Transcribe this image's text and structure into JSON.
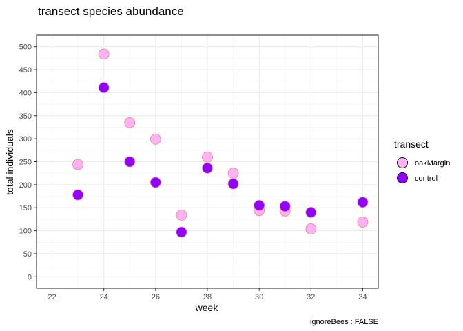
{
  "chart_data": {
    "type": "scatter",
    "title": "transect species abundance",
    "xlabel": "week",
    "ylabel": "total individuals",
    "caption": "ignoreBees : FALSE",
    "xlim": [
      21.4,
      34.6
    ],
    "ylim": [
      -25,
      525
    ],
    "x_ticks": [
      22,
      24,
      26,
      28,
      30,
      32,
      34
    ],
    "y_ticks": [
      0,
      50,
      100,
      150,
      200,
      250,
      300,
      350,
      400,
      450,
      500
    ],
    "grid": true,
    "legend": {
      "title": "transect",
      "position": "right",
      "entries": [
        {
          "label": "oakMargin",
          "fill": "#ffb3f5",
          "stroke": "#f08080"
        },
        {
          "label": "control",
          "fill": "#8f00ff",
          "stroke": "#f08080"
        }
      ]
    },
    "series": [
      {
        "name": "oakMargin",
        "color": "#ffb3f5",
        "points": [
          {
            "x": 23,
            "y": 244
          },
          {
            "x": 24,
            "y": 484
          },
          {
            "x": 25,
            "y": 335
          },
          {
            "x": 26,
            "y": 299
          },
          {
            "x": 27,
            "y": 134
          },
          {
            "x": 28,
            "y": 260
          },
          {
            "x": 29,
            "y": 225
          },
          {
            "x": 30,
            "y": 144
          },
          {
            "x": 31,
            "y": 143
          },
          {
            "x": 32,
            "y": 104
          },
          {
            "x": 34,
            "y": 119
          }
        ]
      },
      {
        "name": "control",
        "color": "#8f00ff",
        "points": [
          {
            "x": 23,
            "y": 178
          },
          {
            "x": 24,
            "y": 411
          },
          {
            "x": 25,
            "y": 250
          },
          {
            "x": 26,
            "y": 205
          },
          {
            "x": 27,
            "y": 97
          },
          {
            "x": 28,
            "y": 236
          },
          {
            "x": 29,
            "y": 202
          },
          {
            "x": 30,
            "y": 155
          },
          {
            "x": 31,
            "y": 153
          },
          {
            "x": 32,
            "y": 140
          },
          {
            "x": 34,
            "y": 162
          }
        ]
      }
    ]
  }
}
